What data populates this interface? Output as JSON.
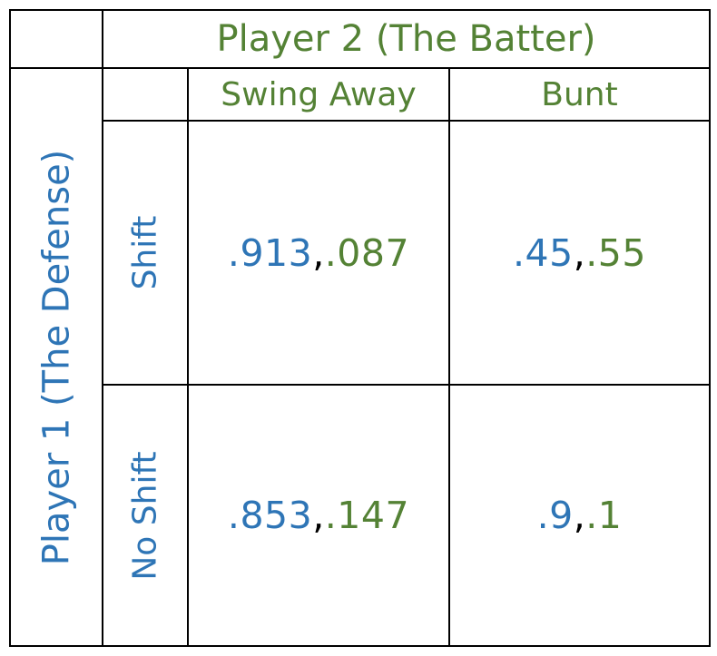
{
  "player2": {
    "label": "Player 2 (The Batter)",
    "color": "#548235"
  },
  "player1": {
    "label": "Player 1 (The Defense)",
    "color": "#2E75B6"
  },
  "columns": [
    {
      "label": "Swing Away"
    },
    {
      "label": "Bunt"
    }
  ],
  "rows": [
    {
      "label": "Shift",
      "cells": [
        {
          "p1": ".913",
          "sep": ", ",
          "p2": ".087"
        },
        {
          "p1": ".45",
          "sep": ", ",
          "p2": ".55"
        }
      ]
    },
    {
      "label": "No Shift",
      "cells": [
        {
          "p1": ".853",
          "sep": ", ",
          "p2": ".147"
        },
        {
          "p1": ".9",
          "sep": ", ",
          "p2": ".1"
        }
      ]
    }
  ]
}
